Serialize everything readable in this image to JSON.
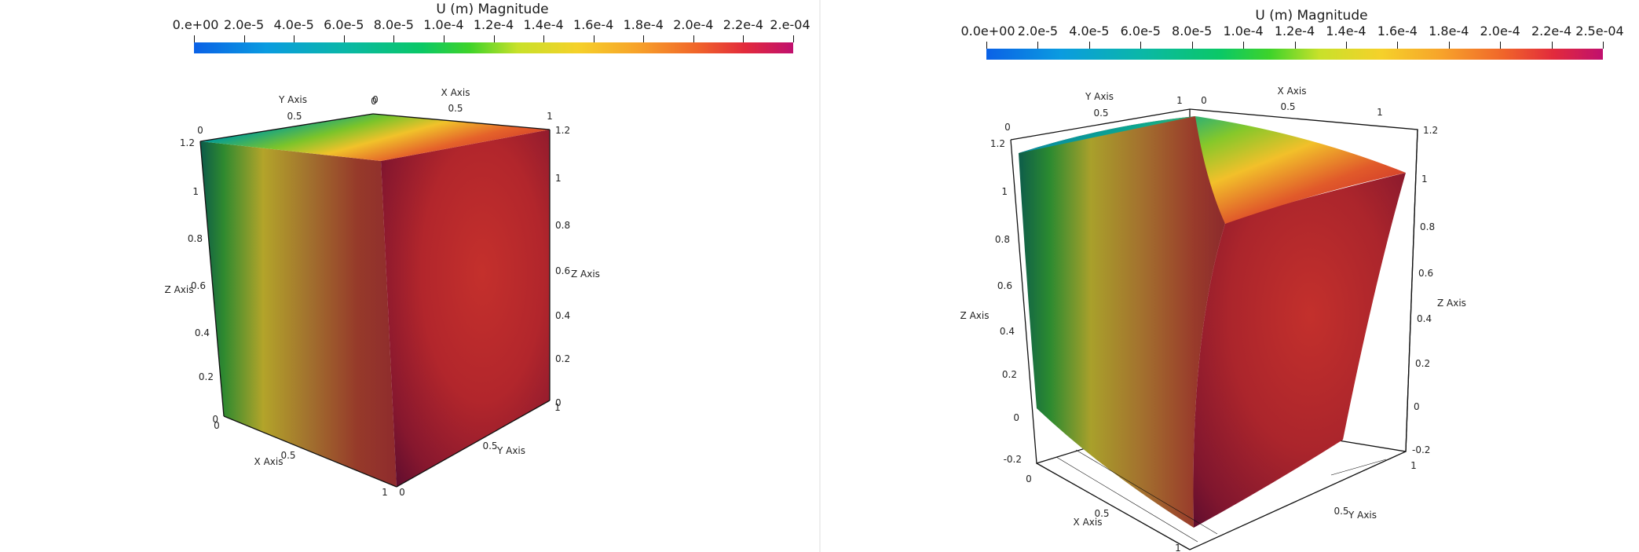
{
  "left_view": {
    "colorbar": {
      "title": "U (m) Magnitude",
      "tick_labels": [
        "0.e+00",
        "2.0e-5",
        "4.0e-5",
        "6.0e-5",
        "8.0e-5",
        "1.0e-4",
        "1.2e-4",
        "1.4e-4",
        "1.6e-4",
        "1.8e-4",
        "2.0e-4",
        "2.2e-4",
        "2.e-04"
      ],
      "colormap": "turbo-like (blue-cyan-green-yellow-orange-red-magenta)"
    },
    "axes": {
      "y_axis_title": "Y Axis",
      "x_axis_title_top": "X Axis",
      "z_axis_title_left": "Z Axis",
      "z_axis_title_right": "Z Axis",
      "x_axis_title_bottom": "X Axis",
      "y_axis_title_bottom": "Y Axis",
      "top_y_ticks": [
        "0",
        "0.5",
        "0"
      ],
      "top_x_ticks": [
        "0",
        "0.5",
        "1"
      ],
      "left_z_ticks": [
        "1.2",
        "1",
        "0.8",
        "0.6",
        "0.4",
        "0.2",
        "0"
      ],
      "right_z_ticks": [
        "1.2",
        "1",
        "0.8",
        "0.6",
        "0.4",
        "0.2",
        "0"
      ],
      "bottom_x_ticks": [
        "0",
        "0.5",
        "1"
      ],
      "bottom_y_ticks": [
        "0",
        "0.5",
        "1"
      ]
    }
  },
  "right_view": {
    "colorbar": {
      "title": "U (m) Magnitude",
      "tick_labels": [
        "0.0e+00",
        "2.0e-5",
        "4.0e-5",
        "6.0e-5",
        "8.0e-5",
        "1.0e-4",
        "1.2e-4",
        "1.4e-4",
        "1.6e-4",
        "1.8e-4",
        "2.0e-4",
        "2.2e-4",
        "2.5e-04"
      ],
      "colormap": "turbo-like (blue-cyan-green-yellow-orange-red-magenta)"
    },
    "axes": {
      "y_axis_title": "Y Axis",
      "x_axis_title_top": "X Axis",
      "z_axis_title_left": "Z Axis",
      "z_axis_title_right": "Z Axis",
      "x_axis_title_bottom": "X Axis",
      "y_axis_title_bottom": "Y Axis",
      "top_y_ticks": [
        "0",
        "0.5",
        "1"
      ],
      "top_x_ticks": [
        "0",
        "0.5",
        "1"
      ],
      "left_z_ticks": [
        "1.2",
        "1",
        "0.8",
        "0.6",
        "0.4",
        "0.2",
        "0",
        "-0.2"
      ],
      "right_z_ticks": [
        "1.2",
        "1",
        "0.8",
        "0.6",
        "0.4",
        "0.2",
        "0",
        "-0.2"
      ],
      "bottom_x_ticks": [
        "0",
        "0.5",
        "1"
      ],
      "bottom_y_ticks": [
        "0.5",
        "1"
      ]
    }
  }
}
